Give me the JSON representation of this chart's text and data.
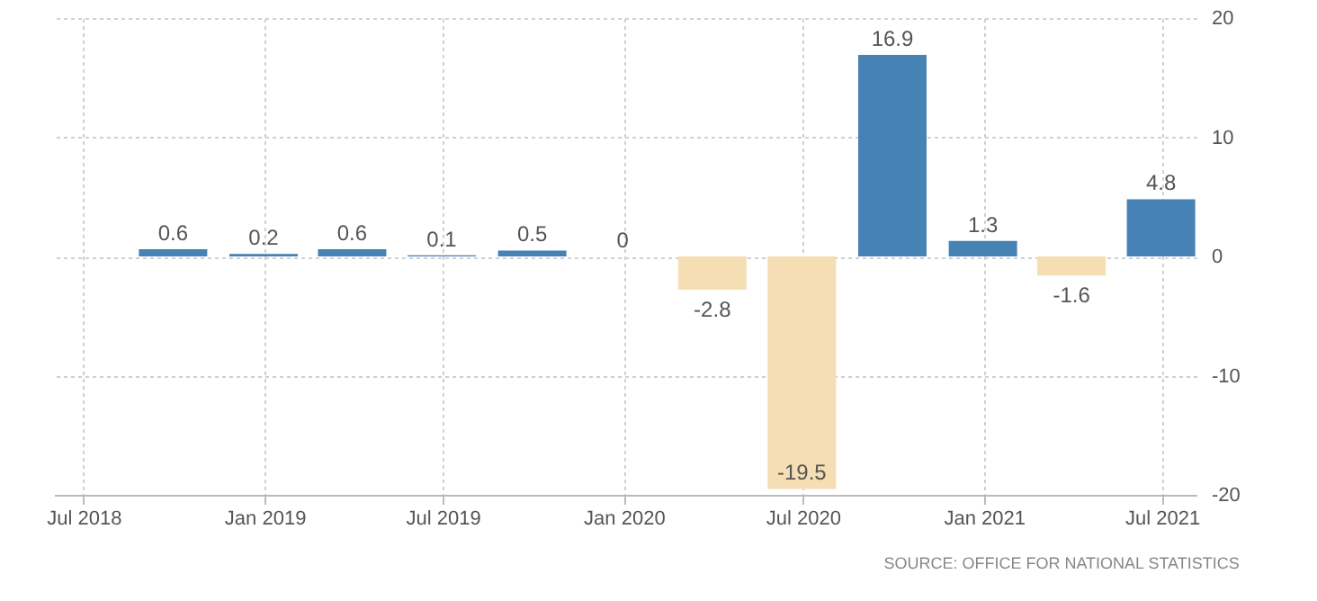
{
  "chart_data": {
    "type": "bar",
    "x": [
      "2018-09-30",
      "2018-12-31",
      "2019-03-31",
      "2019-06-30",
      "2019-09-30",
      "2019-12-31",
      "2020-03-31",
      "2020-06-30",
      "2020-09-30",
      "2020-12-31",
      "2021-03-31",
      "2021-06-30"
    ],
    "values": [
      0.6,
      0.2,
      0.6,
      0.1,
      0.5,
      0,
      -2.8,
      -19.5,
      16.9,
      1.3,
      -1.6,
      4.8
    ],
    "colors": [
      "#4682b4",
      "#4682b4",
      "#4682b4",
      "#4682b4",
      "#4682b4",
      "#4682b4",
      "#f5deb3",
      "#f5deb3",
      "#4682b4",
      "#4682b4",
      "#f5deb3",
      "#4682b4"
    ],
    "data_labels": true,
    "xlim": [
      "2018-06-01",
      "2021-08-05"
    ],
    "xticks": [
      {
        "value": "2018-07-01",
        "label": "Jul 2018"
      },
      {
        "value": "2019-01-01",
        "label": "Jan 2019"
      },
      {
        "value": "2019-07-01",
        "label": "Jul 2019"
      },
      {
        "value": "2020-01-01",
        "label": "Jan 2020"
      },
      {
        "value": "2020-07-01",
        "label": "Jul 2020"
      },
      {
        "value": "2021-01-01",
        "label": "Jan 2021"
      },
      {
        "value": "2021-07-01",
        "label": "Jul 2021"
      }
    ],
    "ylim": [
      -20,
      20
    ],
    "yticks": [
      -20,
      -10,
      0,
      10,
      20
    ],
    "grid": true,
    "annotations": [
      "SOURCE: OFFICE FOR NATIONAL STATISTICS"
    ]
  }
}
